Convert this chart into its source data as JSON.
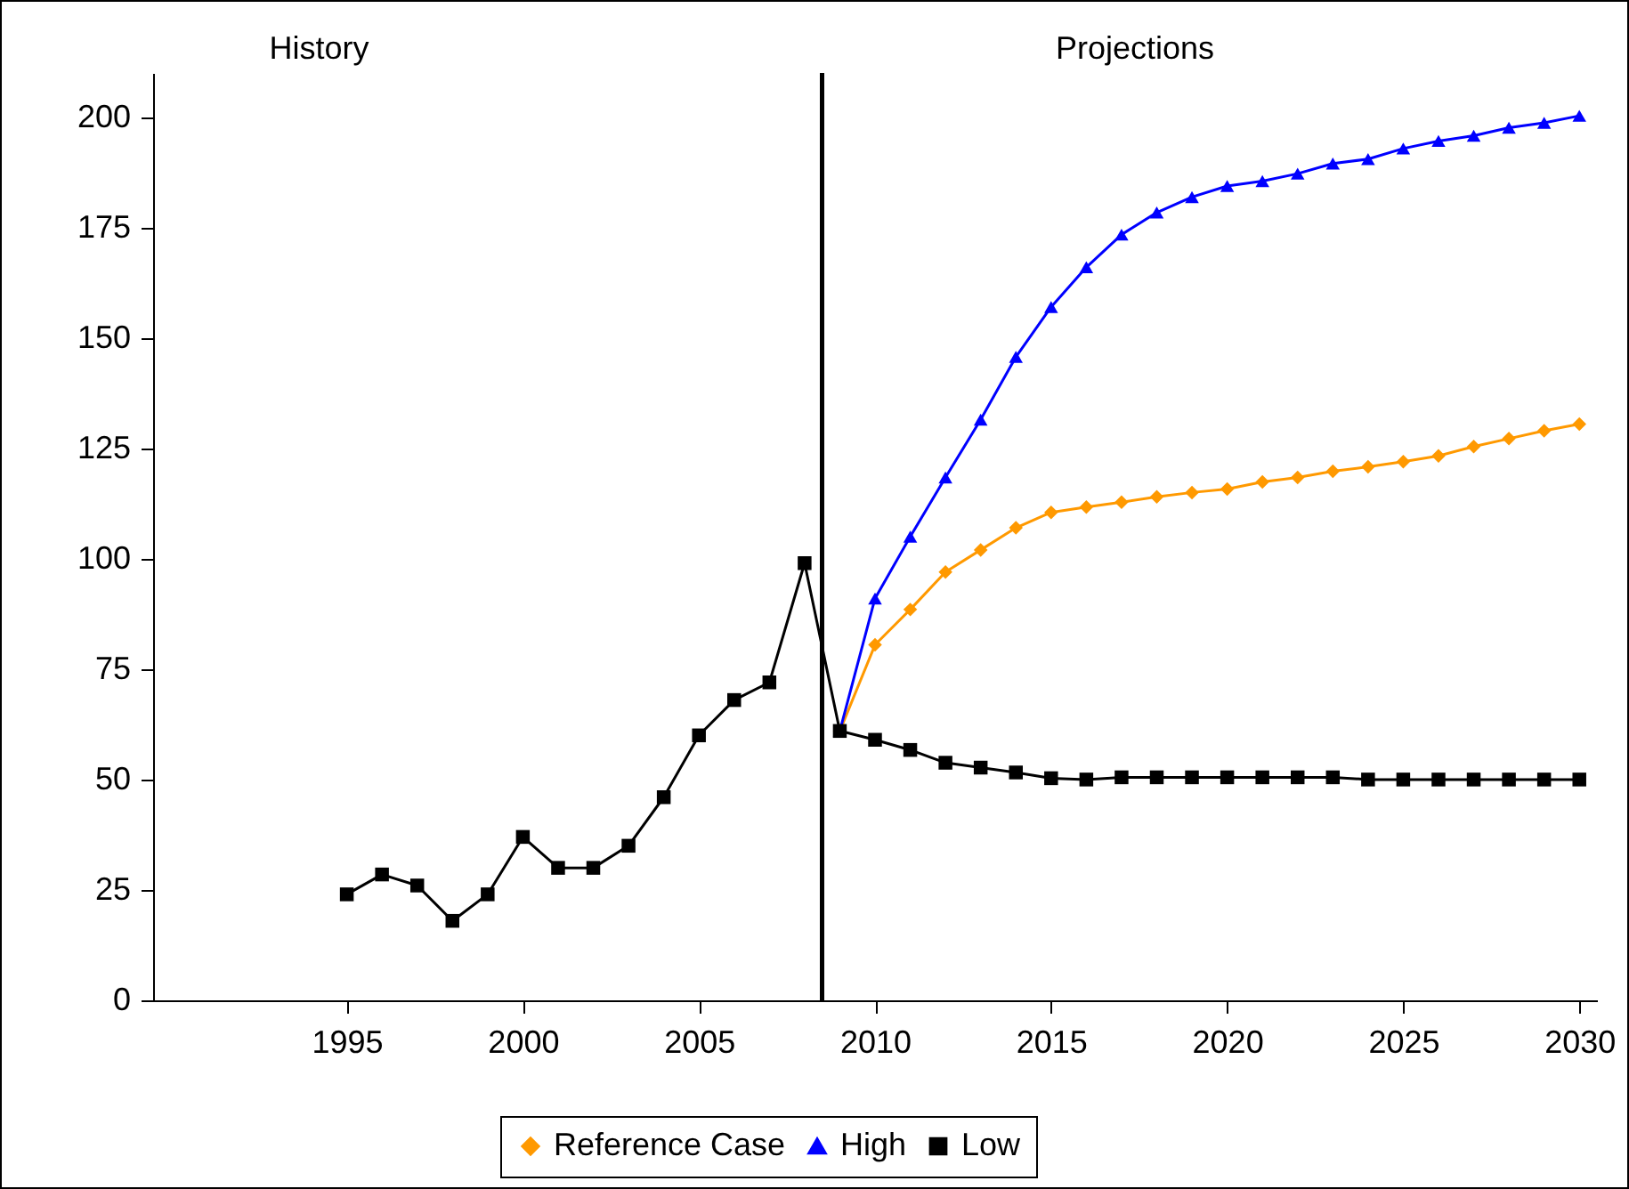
{
  "chart_data": {
    "type": "line",
    "annotations": [
      "History",
      "Projections"
    ],
    "xlim": [
      1989.5,
      2030.5
    ],
    "xticks": [
      1995,
      2000,
      2005,
      2010,
      2015,
      2020,
      2025,
      2030
    ],
    "ylim": [
      0,
      210
    ],
    "yticks": [
      0,
      25,
      50,
      75,
      100,
      125,
      150,
      175,
      200
    ],
    "grid": false,
    "legend": "bottom",
    "line_style": "solid",
    "ref_lines": [
      {
        "axis": "x",
        "value": 2008.5,
        "color": "#000000"
      }
    ],
    "series": [
      {
        "name": "Reference Case",
        "color": "#ff9900",
        "marker": "diamond",
        "x": [
          2009,
          2010,
          2011,
          2012,
          2013,
          2014,
          2015,
          2016,
          2017,
          2018,
          2019,
          2020,
          2021,
          2022,
          2023,
          2024,
          2025,
          2026,
          2027,
          2028,
          2029,
          2030
        ],
        "values": [
          61,
          80.5,
          88.5,
          97,
          102,
          107,
          110.5,
          111.7,
          112.8,
          114,
          115,
          115.8,
          117.4,
          118.4,
          119.8,
          120.8,
          122,
          123.3,
          125.4,
          127.2,
          129,
          130.5
        ]
      },
      {
        "name": "High",
        "color": "#0000ff",
        "marker": "triangle",
        "x": [
          2009,
          2010,
          2011,
          2012,
          2013,
          2014,
          2015,
          2016,
          2017,
          2018,
          2019,
          2020,
          2021,
          2022,
          2023,
          2024,
          2025,
          2026,
          2027,
          2028,
          2029,
          2030
        ],
        "values": [
          61,
          91,
          105,
          118.4,
          131.5,
          145.7,
          157,
          166,
          173.4,
          178.4,
          181.9,
          184.4,
          185.5,
          187.2,
          189.5,
          190.5,
          192.9,
          194.6,
          195.8,
          197.6,
          198.7,
          200.3
        ]
      },
      {
        "name": "Low",
        "color": "#000000",
        "marker": "square",
        "x": [
          1995,
          1996,
          1997,
          1998,
          1999,
          2000,
          2001,
          2002,
          2003,
          2004,
          2005,
          2006,
          2007,
          2008,
          2009,
          2010,
          2011,
          2012,
          2013,
          2014,
          2015,
          2016,
          2017,
          2018,
          2019,
          2020,
          2021,
          2022,
          2023,
          2024,
          2025,
          2026,
          2027,
          2028,
          2029,
          2030
        ],
        "values": [
          24,
          28.5,
          26,
          18,
          24,
          37,
          30,
          30,
          35,
          46,
          60,
          68,
          72,
          99,
          61,
          59,
          56.7,
          53.8,
          52.7,
          51.6,
          50.3,
          50,
          50.5,
          50.5,
          50.5,
          50.5,
          50.5,
          50.5,
          50.5,
          50,
          50,
          50,
          50,
          50,
          50,
          50
        ]
      }
    ]
  }
}
